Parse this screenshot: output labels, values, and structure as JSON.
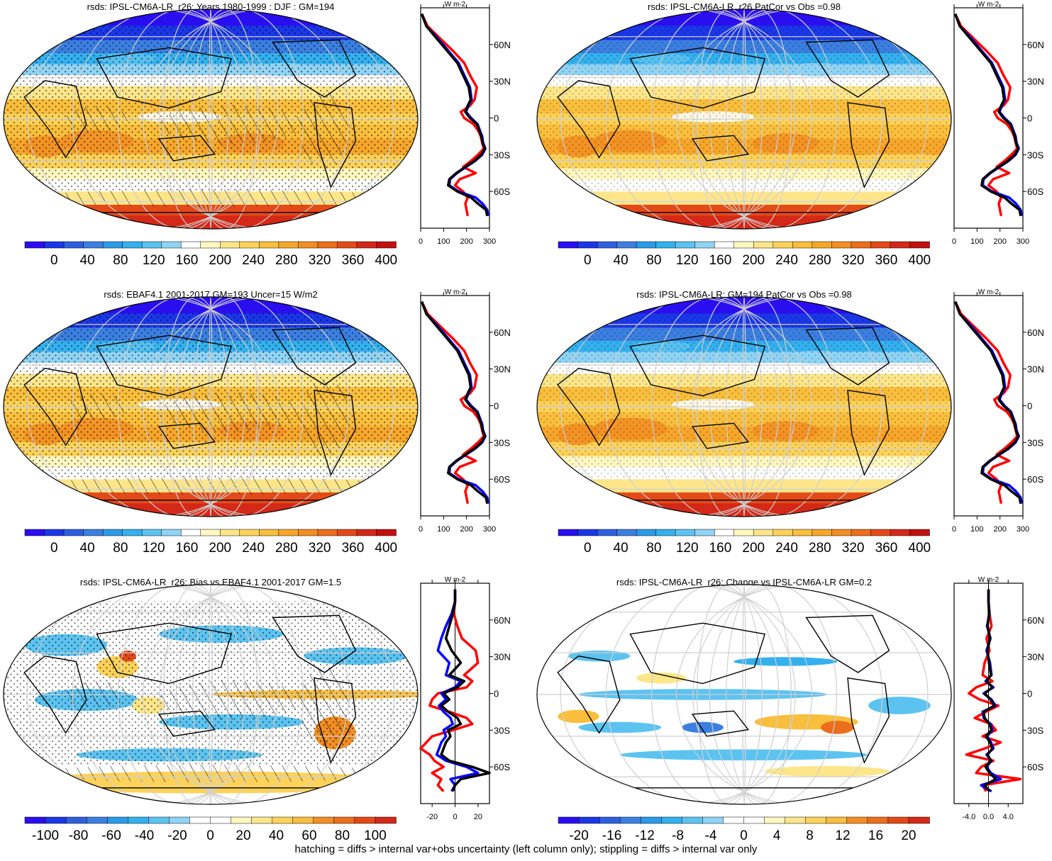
{
  "caption": "hatching = diffs > internal var+obs uncertainty (left column only); stippling = diffs > internal var only",
  "colors": {
    "abs_scale": [
      "#2b0ef0",
      "#1a37e8",
      "#2f5fe0",
      "#3b7fe0",
      "#2a9be8",
      "#33b0ee",
      "#5cc3f0",
      "#8fd3f4",
      "#ffffff",
      "#fff7c0",
      "#fde68a",
      "#fcd25a",
      "#f9be3c",
      "#f6a62a",
      "#f28e22",
      "#ec6e1c",
      "#e34a18",
      "#d42818",
      "#c01010"
    ],
    "diff_scale": [
      "#2b0ef0",
      "#1a37e8",
      "#2f5fe0",
      "#3b7fe0",
      "#2a9be8",
      "#33b0ee",
      "#5cc3f0",
      "#8fd3f4",
      "#ffffff",
      "#ffffff",
      "#fff7c0",
      "#fde68a",
      "#fcd25a",
      "#f9be3c",
      "#f28e22",
      "#ec6e1c",
      "#e34a18",
      "#d42818"
    ],
    "model_line": "#000000",
    "obs_line": "#0000ff",
    "other_line": "#ff0000"
  },
  "chart_data": [
    {
      "type": "heatmap",
      "title": "rsds: IPSL-CM6A-LR_r26: Years 1980-1999 : DJF : GM=194",
      "colorbar_ticks": [
        "0",
        "40",
        "80",
        "120",
        "160",
        "200",
        "240",
        "280",
        "320",
        "360",
        "400"
      ],
      "zonal_axis_ticks": [
        "0",
        "100",
        "200",
        "300"
      ],
      "zonal_xlim": [
        0,
        300
      ],
      "lat_ticks": [
        "60N",
        "30N",
        "0",
        "30S",
        "60S"
      ],
      "unit": "W m-2",
      "zonal_lines": {
        "lat": [
          85,
          75,
          65,
          55,
          45,
          35,
          25,
          15,
          10,
          5,
          0,
          -5,
          -10,
          -15,
          -20,
          -25,
          -30,
          -35,
          -40,
          -45,
          -50,
          -55,
          -60,
          -65,
          -70,
          -75,
          -80
        ],
        "black": [
          5,
          25,
          70,
          115,
          160,
          185,
          210,
          218,
          205,
          195,
          215,
          245,
          255,
          265,
          270,
          280,
          265,
          235,
          195,
          155,
          125,
          120,
          160,
          220,
          250,
          285,
          290
        ],
        "blue": [
          5,
          25,
          75,
          120,
          165,
          190,
          215,
          222,
          208,
          198,
          220,
          248,
          258,
          268,
          272,
          282,
          268,
          238,
          198,
          158,
          128,
          125,
          165,
          240,
          270,
          290,
          295
        ],
        "red": [
          5,
          30,
          85,
          140,
          190,
          215,
          245,
          235,
          215,
          175,
          190,
          230,
          250,
          262,
          268,
          275,
          250,
          220,
          185,
          240,
          170,
          150,
          185,
          205,
          195,
          200,
          205
        ]
      }
    },
    {
      "type": "heatmap",
      "title": "rsds: IPSL-CM6A-LR_r26 PatCor vs Obs =0.98",
      "colorbar_ticks": [
        "0",
        "40",
        "80",
        "120",
        "160",
        "200",
        "240",
        "280",
        "320",
        "360",
        "400"
      ],
      "zonal_axis_ticks": [
        "0",
        "100",
        "200",
        "300"
      ],
      "zonal_xlim": [
        0,
        300
      ],
      "lat_ticks": [
        "60N",
        "30N",
        "0",
        "30S",
        "60S"
      ],
      "unit": "W m-2",
      "zonal_lines": {
        "lat": [
          85,
          75,
          65,
          55,
          45,
          35,
          25,
          15,
          10,
          5,
          0,
          -5,
          -10,
          -15,
          -20,
          -25,
          -30,
          -35,
          -40,
          -45,
          -50,
          -55,
          -60,
          -65,
          -70,
          -75,
          -80
        ],
        "black": [
          5,
          25,
          70,
          115,
          160,
          185,
          210,
          218,
          205,
          195,
          215,
          245,
          255,
          265,
          270,
          280,
          265,
          235,
          195,
          155,
          125,
          120,
          160,
          220,
          250,
          285,
          290
        ],
        "blue": [
          5,
          25,
          75,
          120,
          165,
          190,
          215,
          222,
          208,
          198,
          220,
          248,
          258,
          268,
          272,
          282,
          268,
          238,
          198,
          158,
          128,
          125,
          165,
          240,
          270,
          290,
          295
        ],
        "red": [
          5,
          30,
          85,
          140,
          190,
          215,
          245,
          235,
          215,
          175,
          190,
          230,
          250,
          262,
          268,
          275,
          250,
          220,
          185,
          240,
          170,
          150,
          185,
          205,
          195,
          200,
          205
        ]
      }
    },
    {
      "type": "heatmap",
      "title": "rsds: EBAF4.1 2001-2017 GM=193 Uncer=15 W/m2",
      "colorbar_ticks": [
        "0",
        "40",
        "80",
        "120",
        "160",
        "200",
        "240",
        "280",
        "320",
        "360",
        "400"
      ],
      "zonal_axis_ticks": [
        "0",
        "100",
        "200",
        "300"
      ],
      "zonal_xlim": [
        0,
        300
      ],
      "lat_ticks": [
        "60N",
        "30N",
        "0",
        "30S",
        "60S"
      ],
      "unit": "W m-2",
      "zonal_lines": {
        "lat": [
          85,
          75,
          65,
          55,
          45,
          35,
          25,
          15,
          10,
          5,
          0,
          -5,
          -10,
          -15,
          -20,
          -25,
          -30,
          -35,
          -40,
          -45,
          -50,
          -55,
          -60,
          -65,
          -70,
          -75,
          -80
        ],
        "black": [
          5,
          25,
          70,
          115,
          160,
          185,
          210,
          218,
          205,
          195,
          215,
          245,
          255,
          265,
          270,
          280,
          265,
          235,
          195,
          155,
          125,
          120,
          160,
          220,
          250,
          285,
          290
        ],
        "blue": [
          5,
          25,
          75,
          120,
          165,
          190,
          215,
          222,
          208,
          198,
          220,
          248,
          258,
          268,
          272,
          282,
          268,
          238,
          198,
          158,
          128,
          125,
          165,
          240,
          270,
          290,
          295
        ],
        "red": [
          5,
          30,
          85,
          140,
          190,
          215,
          245,
          235,
          215,
          175,
          190,
          230,
          250,
          262,
          268,
          275,
          250,
          220,
          185,
          240,
          170,
          150,
          185,
          205,
          195,
          200,
          205
        ]
      }
    },
    {
      "type": "heatmap",
      "title": "rsds: IPSL-CM6A-LR: GM=194 PatCor vs Obs =0.98",
      "colorbar_ticks": [
        "0",
        "40",
        "80",
        "120",
        "160",
        "200",
        "240",
        "280",
        "320",
        "360",
        "400"
      ],
      "zonal_axis_ticks": [
        "0",
        "100",
        "200",
        "300"
      ],
      "zonal_xlim": [
        0,
        300
      ],
      "lat_ticks": [
        "60N",
        "30N",
        "0",
        "30S",
        "60S"
      ],
      "unit": "W m-2",
      "zonal_lines": {
        "lat": [
          85,
          75,
          65,
          55,
          45,
          35,
          25,
          15,
          10,
          5,
          0,
          -5,
          -10,
          -15,
          -20,
          -25,
          -30,
          -35,
          -40,
          -45,
          -50,
          -55,
          -60,
          -65,
          -70,
          -75,
          -80
        ],
        "black": [
          5,
          25,
          70,
          115,
          160,
          185,
          210,
          218,
          205,
          195,
          215,
          245,
          255,
          265,
          270,
          280,
          265,
          235,
          195,
          155,
          125,
          120,
          160,
          220,
          250,
          285,
          290
        ],
        "blue": [
          5,
          25,
          75,
          120,
          165,
          190,
          215,
          222,
          208,
          198,
          220,
          248,
          258,
          268,
          272,
          282,
          268,
          238,
          198,
          158,
          128,
          125,
          165,
          240,
          270,
          290,
          295
        ],
        "red": [
          5,
          30,
          85,
          140,
          190,
          215,
          245,
          235,
          215,
          175,
          190,
          230,
          250,
          262,
          268,
          275,
          250,
          220,
          185,
          240,
          170,
          150,
          185,
          205,
          195,
          200,
          205
        ]
      }
    },
    {
      "type": "heatmap",
      "title": "rsds: IPSL-CM6A-LR_r26: Bias vs EBAF4.1 2001-2017 GM=1.5",
      "colorbar_ticks": [
        "-100",
        "-80",
        "-60",
        "-40",
        "-20",
        "0",
        "20",
        "40",
        "60",
        "80",
        "100"
      ],
      "zonal_axis_ticks": [
        "-20",
        "0",
        "20"
      ],
      "zonal_xlim": [
        -30,
        30
      ],
      "lat_ticks": [
        "60N",
        "30N",
        "0",
        "30S",
        "60S"
      ],
      "unit": "W m-2",
      "zonal_lines": {
        "lat": [
          85,
          75,
          65,
          55,
          45,
          35,
          25,
          15,
          10,
          5,
          0,
          -5,
          -10,
          -15,
          -20,
          -25,
          -30,
          -35,
          -40,
          -45,
          -50,
          -55,
          -60,
          -65,
          -70,
          -75,
          -80
        ],
        "black": [
          0,
          0,
          -2,
          -5,
          -8,
          -3,
          5,
          -5,
          8,
          2,
          -10,
          -5,
          -12,
          -6,
          2,
          5,
          -6,
          -4,
          -8,
          -10,
          -12,
          -5,
          15,
          30,
          5,
          0,
          -2
        ],
        "blue": [
          0,
          0,
          -3,
          -8,
          -12,
          -15,
          -5,
          -8,
          5,
          0,
          -12,
          -8,
          -14,
          -10,
          -4,
          -2,
          -10,
          -8,
          -12,
          -14,
          -16,
          -8,
          10,
          20,
          -4,
          0,
          -3
        ],
        "red": [
          0,
          0,
          -1,
          2,
          6,
          18,
          20,
          8,
          15,
          10,
          -15,
          -20,
          -22,
          -5,
          10,
          15,
          -2,
          -20,
          -25,
          -30,
          -22,
          -18,
          -10,
          -20,
          -12,
          -15,
          -10
        ]
      }
    },
    {
      "type": "heatmap",
      "title": "rsds: IPSL-CM6A-LR_r26: Change vs IPSL-CM6A-LR GM=0.2",
      "colorbar_ticks": [
        "-20",
        "-16",
        "-12",
        "-8",
        "-4",
        "0",
        "4",
        "8",
        "12",
        "16",
        "20"
      ],
      "zonal_axis_ticks": [
        "-4.0",
        "0.0",
        "4.0"
      ],
      "zonal_xlim": [
        -7,
        7
      ],
      "lat_ticks": [
        "60N",
        "30N",
        "0",
        "30S",
        "60S"
      ],
      "unit": "W m-2",
      "zonal_lines": {
        "lat": [
          85,
          75,
          65,
          55,
          45,
          35,
          25,
          15,
          10,
          5,
          0,
          -5,
          -10,
          -15,
          -20,
          -25,
          -30,
          -35,
          -40,
          -45,
          -50,
          -55,
          -60,
          -65,
          -70,
          -75,
          -80
        ],
        "black": [
          0,
          0,
          0.1,
          -0.2,
          0.3,
          -0.2,
          0.1,
          0.5,
          -0.4,
          0.8,
          -0.8,
          0.4,
          1.2,
          -1.0,
          -0.8,
          0.2,
          0.6,
          -0.5,
          0.3,
          0.8,
          -0.2,
          0.5,
          -0.6,
          0.2,
          1.5,
          -0.8,
          0.2
        ],
        "blue": [
          0,
          0,
          0.2,
          -0.3,
          0.4,
          -0.4,
          0.3,
          0.6,
          -0.6,
          1.0,
          -1.0,
          0.6,
          1.4,
          -1.2,
          -1.0,
          0.4,
          0.8,
          -0.3,
          0.5,
          1.0,
          -0.4,
          0.6,
          -0.4,
          0.5,
          2.5,
          -1.5,
          0.6
        ],
        "red": [
          0,
          0,
          0.2,
          0.6,
          -0.4,
          0.2,
          -0.8,
          -1.2,
          0.8,
          -2.5,
          -4.0,
          -1.8,
          2.0,
          -0.5,
          -2.8,
          0.5,
          1.5,
          -1.2,
          2.5,
          -0.8,
          -4.5,
          1.0,
          -1.5,
          -2.5,
          6.5,
          -1.2,
          -0.5
        ]
      }
    }
  ]
}
